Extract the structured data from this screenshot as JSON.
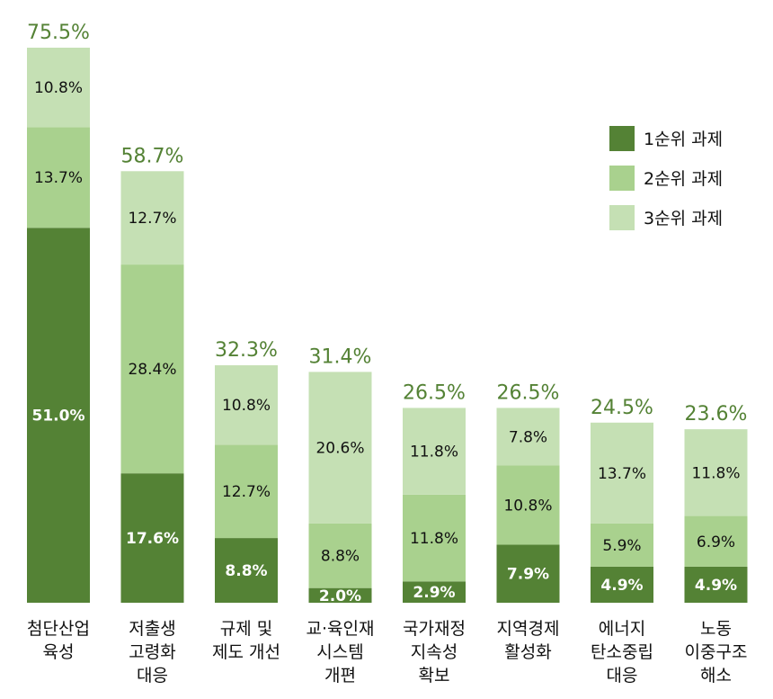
{
  "chart_data": {
    "type": "bar",
    "stacked": true,
    "categories": [
      [
        "첨단산업",
        "육성"
      ],
      [
        "저출생",
        "고령화",
        "대응"
      ],
      [
        "규제 및",
        "제도 개선"
      ],
      [
        "교·육인재",
        "시스템",
        "개편"
      ],
      [
        "국가재정",
        "지속성",
        "확보"
      ],
      [
        "지역경제",
        "활성화"
      ],
      [
        "에너지",
        "탄소중립",
        "대응"
      ],
      [
        "노동",
        "이중구조",
        "해소"
      ]
    ],
    "series": [
      {
        "name": "1순위 과제",
        "values": [
          51.0,
          17.6,
          8.8,
          2.0,
          2.9,
          7.9,
          4.9,
          4.9
        ],
        "labels": [
          "51.0%",
          "17.6%",
          "8.8%",
          "2.0%",
          "2.9%",
          "7.9%",
          "4.9%",
          "4.9%"
        ],
        "color": "#548235"
      },
      {
        "name": "2순위 과제",
        "values": [
          13.7,
          28.4,
          12.7,
          8.8,
          11.8,
          10.8,
          5.9,
          6.9
        ],
        "labels": [
          "13.7%",
          "28.4%",
          "12.7%",
          "8.8%",
          "11.8%",
          "10.8%",
          "5.9%",
          "6.9%"
        ],
        "color": "#a9d18e"
      },
      {
        "name": "3순위 과제",
        "values": [
          10.8,
          12.7,
          10.8,
          20.6,
          11.8,
          7.8,
          13.7,
          11.8
        ],
        "labels": [
          "10.8%",
          "12.7%",
          "10.8%",
          "20.6%",
          "11.8%",
          "7.8%",
          "13.7%",
          "11.8%"
        ],
        "color": "#c5e0b4"
      }
    ],
    "totals": [
      75.5,
      58.7,
      32.3,
      31.4,
      26.5,
      26.5,
      24.5,
      23.6
    ],
    "total_labels": [
      "75.5%",
      "58.7%",
      "32.3%",
      "31.4%",
      "26.5%",
      "26.5%",
      "24.5%",
      "23.6%"
    ],
    "total_color": "#548235",
    "label_colors": {
      "dark": "#ffffff",
      "light": "#111111"
    },
    "ylim": [
      0,
      75.5
    ],
    "grid": false,
    "legend_position": "top-right"
  }
}
